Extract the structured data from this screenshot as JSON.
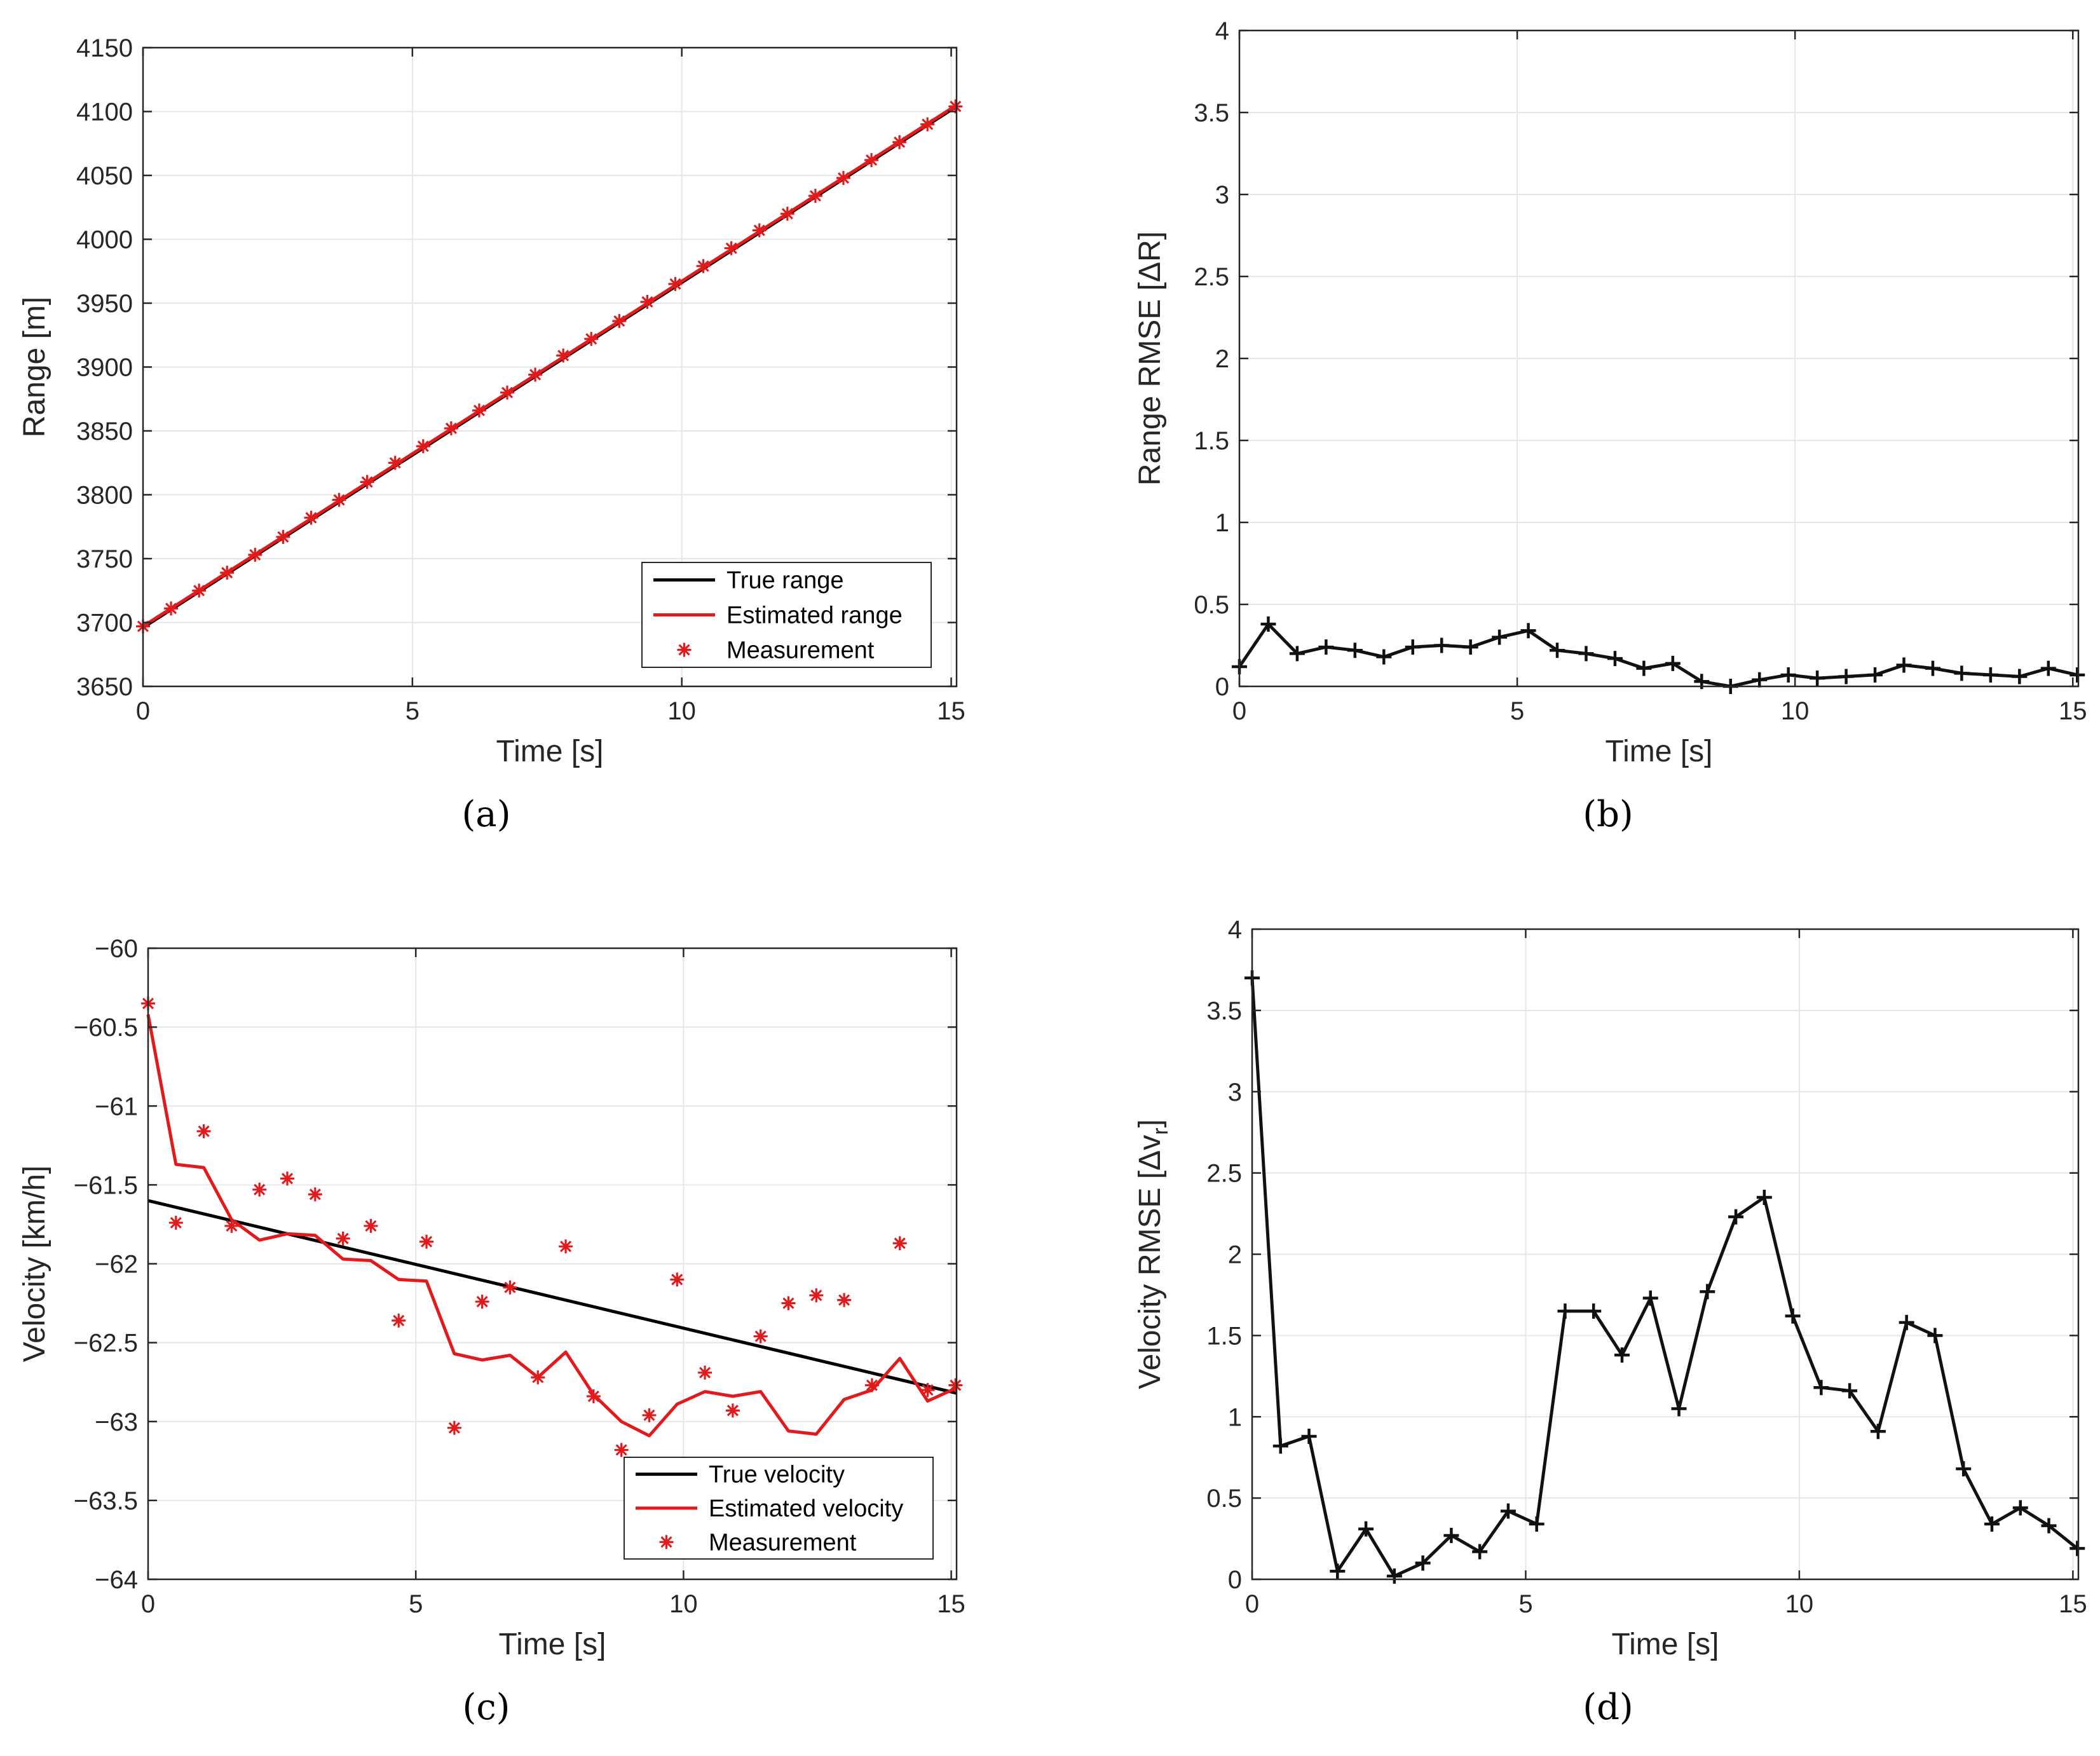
{
  "colors": {
    "true_line": "#000000",
    "estimated": "#e31a1c",
    "rmse_line": "#111111",
    "grid": "#e6e6e6",
    "frame": "#262626"
  },
  "chart_data": [
    {
      "id": "a",
      "panel_label": "(a)",
      "type": "line",
      "xlabel": "Time [s]",
      "ylabel": "Range [m]",
      "xlim": [
        0,
        15.1
      ],
      "ylim": [
        3650,
        4150
      ],
      "xticks": [
        0,
        5,
        10,
        15
      ],
      "yticks": [
        3650,
        3700,
        3750,
        3800,
        3850,
        3900,
        3950,
        4000,
        4050,
        4100,
        4150
      ],
      "legend_position": "bottom-right",
      "series": [
        {
          "name": "True range",
          "style": "line",
          "color": "#000000",
          "x": [
            0,
            15.1
          ],
          "y": [
            3696,
            4104
          ]
        },
        {
          "name": "Estimated range",
          "style": "line",
          "color": "#e31a1c",
          "x": [
            0,
            15.1
          ],
          "y": [
            3697,
            4105
          ]
        },
        {
          "name": "Measurement",
          "style": "marker",
          "color": "#e31a1c",
          "x": [
            0,
            0.52,
            1.04,
            1.56,
            2.08,
            2.6,
            3.12,
            3.64,
            4.16,
            4.68,
            5.2,
            5.72,
            6.24,
            6.76,
            7.28,
            7.8,
            8.32,
            8.84,
            9.36,
            9.88,
            10.4,
            10.92,
            11.44,
            11.96,
            12.48,
            13.0,
            13.52,
            14.04,
            14.56,
            15.08
          ],
          "y": [
            3697,
            3711,
            3725,
            3739,
            3753,
            3767,
            3782,
            3796,
            3810,
            3825,
            3838,
            3852,
            3866,
            3880,
            3894,
            3909,
            3922,
            3936,
            3951,
            3965,
            3979,
            3993,
            4007,
            4020,
            4034,
            4048,
            4062,
            4076,
            4090,
            4104
          ]
        }
      ]
    },
    {
      "id": "b",
      "panel_label": "(b)",
      "type": "line",
      "xlabel": "Time [s]",
      "ylabel": "Range RMSE [ΔR]",
      "xlim": [
        0,
        15.1
      ],
      "ylim": [
        0,
        4
      ],
      "xticks": [
        0,
        5,
        10,
        15
      ],
      "yticks": [
        0,
        0.5,
        1,
        1.5,
        2,
        2.5,
        3,
        3.5,
        4
      ],
      "series": [
        {
          "name": "Range RMSE",
          "style": "line-plus",
          "color": "#111111",
          "x": [
            0,
            0.52,
            1.04,
            1.56,
            2.08,
            2.6,
            3.12,
            3.64,
            4.16,
            4.68,
            5.2,
            5.72,
            6.24,
            6.76,
            7.28,
            7.8,
            8.32,
            8.84,
            9.36,
            9.88,
            10.4,
            10.92,
            11.44,
            11.96,
            12.48,
            13.0,
            13.52,
            14.04,
            14.56,
            15.08
          ],
          "y": [
            0.12,
            0.38,
            0.2,
            0.24,
            0.22,
            0.18,
            0.24,
            0.25,
            0.24,
            0.3,
            0.34,
            0.22,
            0.2,
            0.17,
            0.11,
            0.14,
            0.03,
            0.0,
            0.04,
            0.07,
            0.05,
            0.06,
            0.07,
            0.13,
            0.11,
            0.08,
            0.07,
            0.06,
            0.11,
            0.07
          ]
        }
      ]
    },
    {
      "id": "c",
      "panel_label": "(c)",
      "type": "line",
      "xlabel": "Time [s]",
      "ylabel": "Velocity [km/h]",
      "xlim": [
        0,
        15.1
      ],
      "ylim": [
        -64,
        -60
      ],
      "xticks": [
        0,
        5,
        10,
        15
      ],
      "yticks": [
        -64,
        -63.5,
        -63,
        -62.5,
        -62,
        -61.5,
        -61,
        -60.5,
        -60
      ],
      "ytick_labels": [
        "−64",
        "−63.5",
        "−63",
        "−62.5",
        "−62",
        "−61.5",
        "−61",
        "−60.5",
        "−60"
      ],
      "legend_position": "bottom-right",
      "series": [
        {
          "name": "True velocity",
          "style": "line",
          "color": "#000000",
          "x": [
            0,
            15.1
          ],
          "y": [
            -61.6,
            -62.82
          ]
        },
        {
          "name": "Estimated velocity",
          "style": "line",
          "color": "#e31a1c",
          "x": [
            0,
            0.52,
            1.04,
            1.56,
            2.08,
            2.6,
            3.12,
            3.64,
            4.16,
            4.68,
            5.2,
            5.72,
            6.24,
            6.76,
            7.28,
            7.8,
            8.32,
            8.84,
            9.36,
            9.88,
            10.4,
            10.92,
            11.44,
            11.96,
            12.48,
            13.0,
            13.52,
            14.04,
            14.56,
            15.08
          ],
          "y": [
            -60.42,
            -61.37,
            -61.39,
            -61.72,
            -61.85,
            -61.81,
            -61.82,
            -61.97,
            -61.98,
            -62.1,
            -62.11,
            -62.57,
            -62.61,
            -62.58,
            -62.72,
            -62.56,
            -62.83,
            -63.0,
            -63.09,
            -62.89,
            -62.81,
            -62.84,
            -62.81,
            -63.06,
            -63.08,
            -62.86,
            -62.8,
            -62.6,
            -62.87,
            -62.79
          ]
        },
        {
          "name": "Measurement",
          "style": "marker",
          "color": "#e31a1c",
          "x": [
            0,
            0.52,
            1.04,
            1.56,
            2.08,
            2.6,
            3.12,
            3.64,
            4.16,
            4.68,
            5.2,
            5.72,
            6.24,
            6.76,
            7.28,
            7.8,
            8.32,
            8.84,
            9.36,
            9.88,
            10.4,
            10.92,
            11.44,
            11.96,
            12.48,
            13.0,
            13.52,
            14.04,
            14.56,
            15.08
          ],
          "y": [
            -60.35,
            -61.74,
            -61.16,
            -61.76,
            -61.53,
            -61.46,
            -61.56,
            -61.84,
            -61.76,
            -62.36,
            -61.86,
            -63.04,
            -62.24,
            -62.15,
            -62.72,
            -61.89,
            -62.84,
            -63.18,
            -62.96,
            -62.1,
            -62.69,
            -62.93,
            -62.46,
            -62.25,
            -62.2,
            -62.23,
            -62.77,
            -61.87,
            -62.8,
            -62.77
          ]
        }
      ]
    },
    {
      "id": "d",
      "panel_label": "(d)",
      "type": "line",
      "xlabel": "Time [s]",
      "ylabel": "Velocity RMSE [Δv",
      "ylabel_sub": "r",
      "ylabel_close": "]",
      "xlim": [
        0,
        15.1
      ],
      "ylim": [
        0,
        4
      ],
      "xticks": [
        0,
        5,
        10,
        15
      ],
      "yticks": [
        0,
        0.5,
        1,
        1.5,
        2,
        2.5,
        3,
        3.5,
        4
      ],
      "series": [
        {
          "name": "Velocity RMSE",
          "style": "line-plus",
          "color": "#111111",
          "x": [
            0,
            0.52,
            1.04,
            1.56,
            2.08,
            2.6,
            3.12,
            3.64,
            4.16,
            4.68,
            5.2,
            5.72,
            6.24,
            6.76,
            7.28,
            7.8,
            8.32,
            8.84,
            9.36,
            9.88,
            10.4,
            10.92,
            11.44,
            11.96,
            12.48,
            13.0,
            13.52,
            14.04,
            14.56,
            15.08
          ],
          "y": [
            3.7,
            0.82,
            0.88,
            0.05,
            0.31,
            0.02,
            0.1,
            0.27,
            0.17,
            0.42,
            0.34,
            1.65,
            1.65,
            1.38,
            1.73,
            1.05,
            1.77,
            2.23,
            2.35,
            1.62,
            1.18,
            1.16,
            0.91,
            1.58,
            1.5,
            0.68,
            0.34,
            0.44,
            0.33,
            0.19
          ]
        }
      ]
    }
  ]
}
